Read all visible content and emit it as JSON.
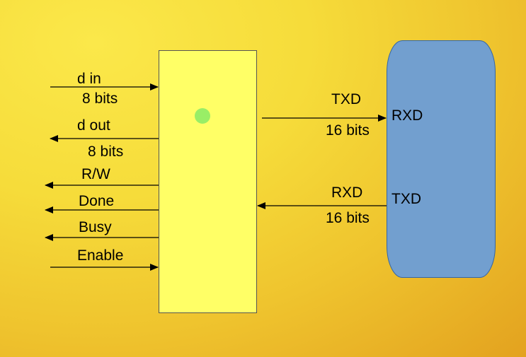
{
  "signals": {
    "d_in": "d in",
    "d_in_bits": "8 bits",
    "d_out": "d out",
    "d_out_bits": "8 bits",
    "rw": "R/W",
    "done": "Done",
    "busy": "Busy",
    "enable": "Enable"
  },
  "link": {
    "tx_label": "TXD",
    "tx_bits": "16 bits",
    "rx_label": "RXD",
    "rx_bits": "16 bits"
  },
  "device": {
    "rxd_pin": "RXD",
    "txd_pin": "TXD"
  },
  "colors": {
    "controller_fill": "#ffff66",
    "device_fill": "#729fcf",
    "indicator": "#99ee66"
  }
}
